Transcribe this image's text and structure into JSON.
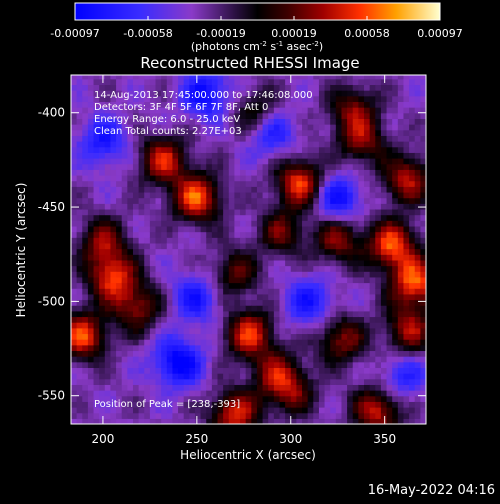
{
  "chart_data": {
    "type": "heatmap",
    "title": "Reconstructed RHESSI Image",
    "xlabel": "Heliocentric X (arcsec)",
    "ylabel": "Heliocentric Y (arcsec)",
    "xlim": [
      183,
      372
    ],
    "ylim": [
      -565,
      -380
    ],
    "x_ticks": [
      200,
      250,
      300,
      350
    ],
    "y_ticks": [
      -400,
      -450,
      -500,
      -550
    ],
    "colorbar": {
      "ticks": [
        "-0.00097",
        "-0.00058",
        "-0.00019",
        "0.00019",
        "0.00058",
        "0.00097"
      ],
      "range": [
        -0.00097,
        0.00097
      ],
      "unit_label": "(photons cm",
      "unit_sup1": "-2",
      "unit_mid": " s",
      "unit_sup2": "-1",
      "unit_end": " asec",
      "unit_sup3": "-2",
      "unit_close": ")"
    },
    "annotations": [
      "14-Aug-2013 17:45:00.000 to 17:46:08.000",
      "Detectors: 3F 4F 5F 6F 7F 8F, Att 0",
      "Energy Range: 6.0 - 25.0 keV",
      "Clean      Total counts: 2.27E+03"
    ],
    "peak_label": "Position of Peak = [238,-393]",
    "hotspots": [
      {
        "x": 250,
        "y": -445,
        "v": 0.0009
      },
      {
        "x": 232,
        "y": -425,
        "v": 0.00075
      },
      {
        "x": 205,
        "y": -487,
        "v": 0.0008
      },
      {
        "x": 200,
        "y": -468,
        "v": 0.0006
      },
      {
        "x": 189,
        "y": -518,
        "v": 0.00085
      },
      {
        "x": 218,
        "y": -503,
        "v": 0.0006
      },
      {
        "x": 278,
        "y": -517,
        "v": 0.0008
      },
      {
        "x": 270,
        "y": -560,
        "v": 0.0008
      },
      {
        "x": 292,
        "y": -538,
        "v": 0.00055
      },
      {
        "x": 295,
        "y": -463,
        "v": 0.0005
      },
      {
        "x": 282,
        "y": -400,
        "v": 0.00045
      },
      {
        "x": 305,
        "y": -437,
        "v": 0.00085
      },
      {
        "x": 333,
        "y": -398,
        "v": 0.00055
      },
      {
        "x": 338,
        "y": -415,
        "v": 0.00055
      },
      {
        "x": 325,
        "y": -467,
        "v": 0.0006
      },
      {
        "x": 354,
        "y": -470,
        "v": 0.0009
      },
      {
        "x": 366,
        "y": -490,
        "v": 0.0009
      },
      {
        "x": 362,
        "y": -435,
        "v": 0.0007
      },
      {
        "x": 363,
        "y": -515,
        "v": 0.00065
      },
      {
        "x": 327,
        "y": -520,
        "v": 0.0006
      },
      {
        "x": 346,
        "y": -558,
        "v": 0.00075
      },
      {
        "x": 300,
        "y": -548,
        "v": 0.0005
      },
      {
        "x": 270,
        "y": -485,
        "v": 0.0005
      }
    ],
    "coldspots": [
      {
        "x": 255,
        "y": -390,
        "v": -0.0006
      },
      {
        "x": 240,
        "y": -532,
        "v": -0.0007
      },
      {
        "x": 200,
        "y": -415,
        "v": -0.0005
      },
      {
        "x": 325,
        "y": -445,
        "v": -0.0006
      },
      {
        "x": 290,
        "y": -410,
        "v": -0.0005
      },
      {
        "x": 310,
        "y": -500,
        "v": -0.0005
      },
      {
        "x": 250,
        "y": -498,
        "v": -0.0005
      },
      {
        "x": 360,
        "y": -540,
        "v": -0.0004
      }
    ]
  },
  "footer": {
    "timestamp": "16-May-2022 04:16"
  }
}
